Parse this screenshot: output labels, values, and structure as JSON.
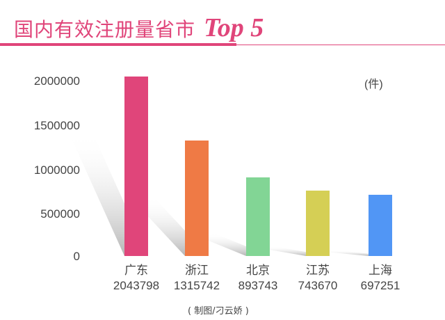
{
  "header": {
    "title_cn": "国内有效注册量省市",
    "title_en": "Top 5",
    "accent": "#e0457a"
  },
  "axis": {
    "ticks": [
      "2000000",
      "1500000",
      "1000000",
      "500000",
      "0"
    ],
    "unit": "(件)"
  },
  "credit": "( 制图/刁云娇 )",
  "chart_data": {
    "type": "bar",
    "title": "国内有效注册量省市 Top 5",
    "xlabel": "",
    "ylabel": "(件)",
    "ylim": [
      0,
      2000000
    ],
    "yticks": [
      0,
      500000,
      1000000,
      1500000,
      2000000
    ],
    "grid": false,
    "categories": [
      "广东",
      "浙江",
      "北京",
      "江苏",
      "上海"
    ],
    "values": [
      2043798,
      1315742,
      893743,
      743670,
      697251
    ],
    "colors": [
      "#e0457a",
      "#ef7a45",
      "#82d595",
      "#d5cf55",
      "#5196f5"
    ],
    "value_labels": [
      "2043798",
      "1315742",
      "893743",
      "743670",
      "697251"
    ]
  }
}
